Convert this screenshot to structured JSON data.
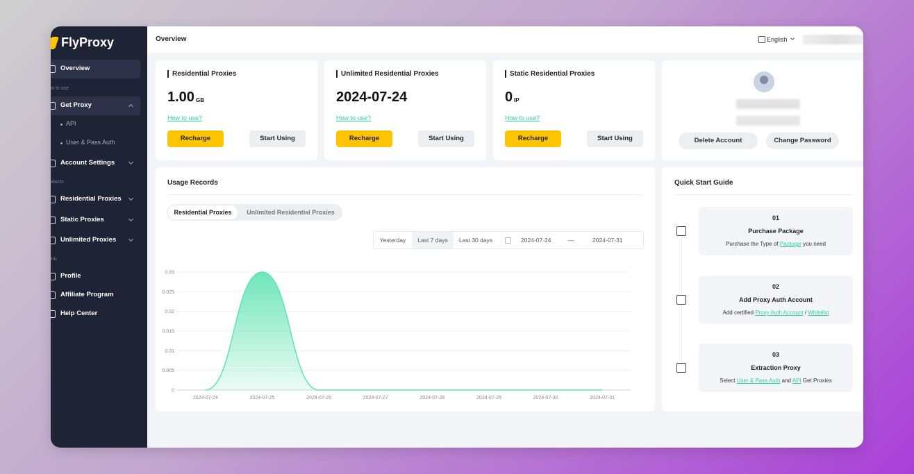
{
  "sidebar": {
    "logo": "FlyProxy",
    "items": [
      {
        "label": "Overview",
        "kind": "item",
        "active": true
      },
      {
        "label": "How to use",
        "kind": "section"
      },
      {
        "label": "Get Proxy",
        "kind": "item",
        "open": true
      },
      {
        "label": "API",
        "kind": "sub"
      },
      {
        "label": "User & Pass Auth",
        "kind": "sub"
      },
      {
        "label": "Account Settings",
        "kind": "item",
        "caret": true
      },
      {
        "label": "Products",
        "kind": "section"
      },
      {
        "label": "Residential Proxies",
        "kind": "item",
        "caret": true
      },
      {
        "label": "Static Proxies",
        "kind": "item",
        "caret": true
      },
      {
        "label": "Unlimited Proxies",
        "kind": "item",
        "caret": true
      },
      {
        "label": "Menu",
        "kind": "section"
      },
      {
        "label": "Profile",
        "kind": "item"
      },
      {
        "label": "Affiliate Program",
        "kind": "item"
      },
      {
        "label": "Help Center",
        "kind": "item"
      }
    ]
  },
  "header": {
    "title": "Overview",
    "language": "English"
  },
  "cards": [
    {
      "title": "Residential Proxies",
      "value": "1.00",
      "unit": "GB",
      "link": "How to use?",
      "buttons": [
        "Recharge",
        "Start Using"
      ]
    },
    {
      "title": "Unlimited Residential Proxies",
      "value": "2024-07-24",
      "link": "How to use?",
      "buttons": [
        "Recharge",
        "Start Using"
      ]
    },
    {
      "title": "Static Residential Proxies",
      "value": "0",
      "unit": "IP",
      "link": "How to use?",
      "buttons": [
        "Recharge",
        "Start Using"
      ]
    }
  ],
  "profile": {
    "buttons": [
      "Delete Account",
      "Change Password"
    ]
  },
  "usage": {
    "title": "Usage Records",
    "tabs": [
      "Residential Proxies",
      "Unlimited Residential Proxies"
    ],
    "active_tab": 0,
    "filters": [
      "Yesterday",
      "Last 7 days",
      "Last 30 days"
    ],
    "active_filter": 1,
    "start_date": "2024-07-24",
    "separator": "—",
    "end_date": "2024-07-31"
  },
  "chart_data": {
    "type": "area",
    "categories": [
      "2024-07-24",
      "2024-07-25",
      "2024-07-26",
      "2024-07-27",
      "2024-07-28",
      "2024-07-29",
      "2024-07-30",
      "2024-07-31"
    ],
    "values": [
      0,
      0.03,
      0,
      0,
      0,
      0,
      0,
      0
    ],
    "color": "#5fe3b3",
    "ylim": [
      0,
      0.03
    ],
    "yticks": [
      0,
      0.005,
      0.01,
      0.015,
      0.02,
      0.025,
      0.03
    ],
    "grid": true
  },
  "guide": {
    "title": "Quick Start Guide",
    "steps": [
      {
        "number": "01",
        "title": "Purchase Package",
        "desc": [
          {
            "text": "Purchase the Type of "
          },
          {
            "text": "Package",
            "link": true
          },
          {
            "text": " you need"
          }
        ]
      },
      {
        "number": "02",
        "title": "Add Proxy Auth Account",
        "desc": [
          {
            "text": "Add certified "
          },
          {
            "text": "Proxy Auth Account",
            "link": true
          },
          {
            "text": " / "
          },
          {
            "text": "Whitelist",
            "link": true
          }
        ]
      },
      {
        "number": "03",
        "title": "Extraction Proxy",
        "desc": [
          {
            "text": "Select "
          },
          {
            "text": "User & Pass Auth",
            "link": true
          },
          {
            "text": " and "
          },
          {
            "text": "API",
            "link": true
          },
          {
            "text": " Get Proxies"
          }
        ]
      }
    ]
  }
}
